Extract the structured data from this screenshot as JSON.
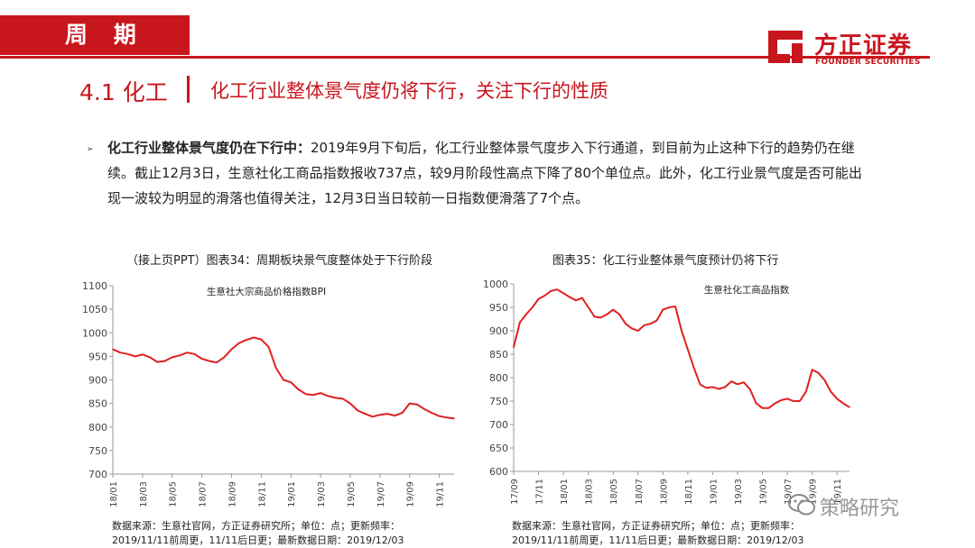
{
  "header": {
    "section_tag": "周 期",
    "logo_cn": "方正证券",
    "logo_en": "FOUNDER SECURITIES"
  },
  "title": {
    "number": "4.1 化工",
    "text": "化工行业整体景气度仍将下行，关注下行的性质"
  },
  "body": {
    "bold_lead": "化工行业整体景气度仍在下行中：",
    "text": "2019年9月下旬后，化工行业整体景气度步入下行通道，到目前为止这种下行的趋势仍在继续。截止12月3日，生意社化工商品指数报收737点，较9月阶段性高点下降了80个单位点。此外，化工行业景气度是否可能出现一波较为明显的滑落也值得关注，12月3日当日较前一日指数便滑落了7个点。"
  },
  "chart_left": {
    "title": "（接上页PPT）图表34：周期板块景气度整体处于下行阶段",
    "source_line1": "数据来源：生意社官网，方正证券研究所；单位：点；更新频率：",
    "source_line2": "2019/11/11前周更，11/11后日更；最新数据日期：2019/12/03"
  },
  "chart_right": {
    "title": "图表35：化工行业整体景气度预计仍将下行",
    "source_line1": "数据来源：生意社官网，方正证券研究所；单位：点；更新频率：",
    "source_line2": "2019/11/11前周更，11/11后日更；最新数据日期：2019/12/03"
  },
  "watermark": "策略研究",
  "colors": {
    "accent": "#c8161d",
    "line": "#e02020"
  },
  "chart_data": [
    {
      "type": "line",
      "series": [
        {
          "name": "生意社大宗商品价格指数BPI",
          "x": [
            "2018-01",
            "2018-01-15",
            "2018-02",
            "2018-02-15",
            "2018-03",
            "2018-03-15",
            "2018-04",
            "2018-04-15",
            "2018-05",
            "2018-05-15",
            "2018-06",
            "2018-06-15",
            "2018-07",
            "2018-07-15",
            "2018-08",
            "2018-08-15",
            "2018-09",
            "2018-09-15",
            "2018-10",
            "2018-10-15",
            "2018-11",
            "2018-11-15",
            "2018-12",
            "2018-12-15",
            "2019-01",
            "2019-01-15",
            "2019-02",
            "2019-02-15",
            "2019-03",
            "2019-03-15",
            "2019-04",
            "2019-04-15",
            "2019-05",
            "2019-05-15",
            "2019-06",
            "2019-06-15",
            "2019-07",
            "2019-07-15",
            "2019-08",
            "2019-08-15",
            "2019-09",
            "2019-09-15",
            "2019-10",
            "2019-10-15",
            "2019-11",
            "2019-11-15",
            "2019-12"
          ],
          "values": [
            965,
            958,
            955,
            950,
            954,
            948,
            938,
            940,
            948,
            952,
            958,
            955,
            945,
            940,
            937,
            948,
            965,
            978,
            985,
            990,
            986,
            970,
            925,
            900,
            895,
            880,
            870,
            868,
            872,
            866,
            862,
            860,
            850,
            835,
            828,
            822,
            826,
            828,
            824,
            830,
            850,
            848,
            838,
            830,
            823,
            820,
            818
          ]
        }
      ],
      "xticks": [
        "18/01",
        "18/03",
        "18/05",
        "18/07",
        "18/09",
        "18/11",
        "19/01",
        "19/03",
        "19/05",
        "19/07",
        "19/09",
        "19/11"
      ],
      "ylim": [
        700,
        1100
      ],
      "yticks": [
        700,
        750,
        800,
        850,
        900,
        950,
        1000,
        1050,
        1100
      ],
      "grid": false,
      "legend": "top-center"
    },
    {
      "type": "line",
      "series": [
        {
          "name": "生意社化工商品指数",
          "x": [
            "2017-09",
            "2017-09-15",
            "2017-10",
            "2017-10-15",
            "2017-11",
            "2017-11-15",
            "2017-12",
            "2017-12-15",
            "2018-01",
            "2018-01-15",
            "2018-02",
            "2018-02-15",
            "2018-03",
            "2018-03-15",
            "2018-04",
            "2018-04-15",
            "2018-05",
            "2018-05-15",
            "2018-06",
            "2018-06-15",
            "2018-07",
            "2018-07-15",
            "2018-08",
            "2018-08-15",
            "2018-09",
            "2018-09-15",
            "2018-10",
            "2018-10-15",
            "2018-11",
            "2018-11-15",
            "2018-12",
            "2018-12-15",
            "2019-01",
            "2019-01-15",
            "2019-02",
            "2019-02-15",
            "2019-03",
            "2019-03-15",
            "2019-04",
            "2019-04-15",
            "2019-05",
            "2019-05-15",
            "2019-06",
            "2019-06-15",
            "2019-07",
            "2019-07-15",
            "2019-08",
            "2019-08-15",
            "2019-09",
            "2019-09-15",
            "2019-10",
            "2019-10-15",
            "2019-11",
            "2019-11-15",
            "2019-12"
          ],
          "values": [
            865,
            918,
            935,
            950,
            968,
            975,
            985,
            988,
            980,
            972,
            965,
            970,
            950,
            930,
            928,
            935,
            945,
            935,
            915,
            905,
            900,
            912,
            915,
            922,
            945,
            950,
            952,
            900,
            860,
            820,
            785,
            778,
            780,
            776,
            780,
            792,
            786,
            790,
            775,
            745,
            735,
            735,
            745,
            752,
            755,
            750,
            750,
            770,
            817,
            810,
            795,
            770,
            755,
            745,
            737
          ]
        }
      ],
      "xticks": [
        "17/09",
        "17/11",
        "18/01",
        "18/03",
        "18/05",
        "18/07",
        "18/09",
        "18/11",
        "19/01",
        "19/03",
        "19/05",
        "19/07",
        "19/09",
        "19/11"
      ],
      "ylim": [
        600,
        1000
      ],
      "yticks": [
        600,
        650,
        700,
        750,
        800,
        850,
        900,
        950,
        1000
      ],
      "grid": false,
      "legend": "top-right"
    }
  ]
}
